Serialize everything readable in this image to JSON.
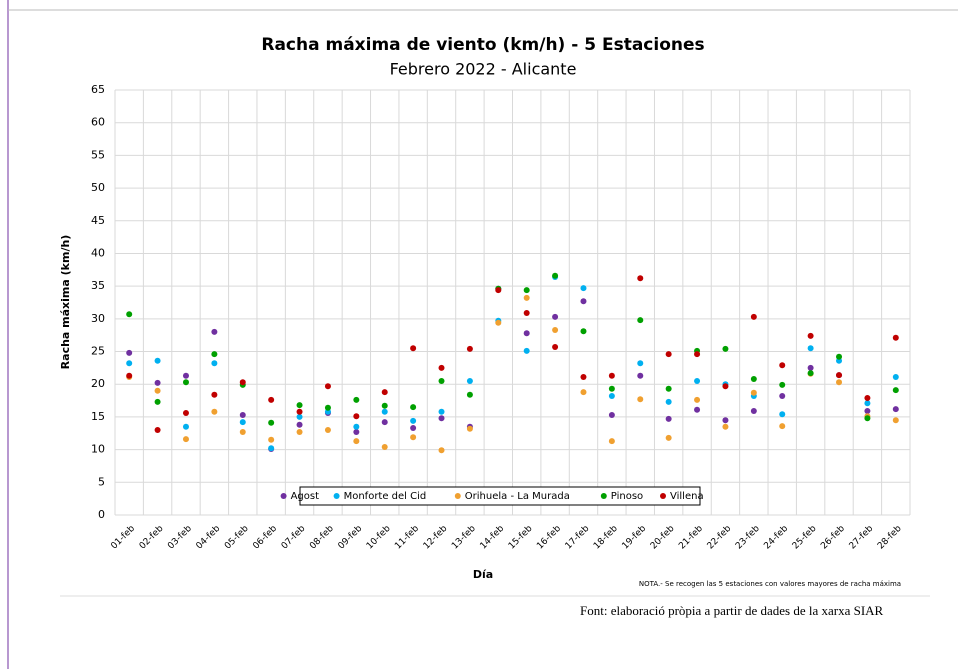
{
  "chart_data": {
    "type": "scatter",
    "title": "Racha máxima de viento (km/h) - 5 Estaciones",
    "subtitle": "Febrero 2022 - Alicante",
    "x_label": "Día",
    "y_label": "Racha máxima (km/h)",
    "note": "NOTA.- Se recogen las 5 estaciones con valores mayores de racha máxima",
    "source": "Font: elaboració pròpia a partir de dades de la xarxa SIAR",
    "categories": [
      "01-feb",
      "02-feb",
      "03-feb",
      "04-feb",
      "05-feb",
      "06-feb",
      "07-feb",
      "08-feb",
      "09-feb",
      "10-feb",
      "11-feb",
      "12-feb",
      "13-feb",
      "14-feb",
      "15-feb",
      "16-feb",
      "17-feb",
      "18-feb",
      "19-feb",
      "20-feb",
      "21-feb",
      "22-feb",
      "23-feb",
      "24-feb",
      "25-feb",
      "26-feb",
      "27-feb",
      "28-feb"
    ],
    "series": [
      {
        "name": "Agost",
        "color": "#7030a0",
        "values": [
          24.8,
          20.2,
          21.3,
          28.0,
          15.3,
          10.1,
          13.8,
          15.6,
          12.7,
          14.2,
          13.3,
          14.8,
          13.5,
          34.6,
          27.8,
          30.3,
          32.7,
          15.3,
          21.3,
          14.7,
          16.1,
          14.5,
          15.9,
          18.2,
          22.5,
          21.4,
          15.9,
          16.2
        ]
      },
      {
        "name": "Monforte del Cid",
        "color": "#00b0f0",
        "values": [
          23.2,
          23.6,
          13.5,
          23.2,
          14.2,
          10.2,
          15.0,
          15.8,
          13.5,
          15.8,
          14.4,
          15.8,
          20.5,
          29.7,
          25.1,
          36.4,
          34.7,
          18.2,
          23.2,
          17.3,
          20.5,
          20.0,
          18.2,
          15.4,
          25.5,
          23.6,
          17.1,
          21.1
        ]
      },
      {
        "name": "Orihuela - La Murada",
        "color": "#f0a030",
        "values": [
          21.1,
          19.0,
          11.6,
          15.8,
          12.7,
          11.5,
          12.7,
          13.0,
          11.3,
          10.4,
          11.9,
          9.9,
          13.2,
          29.4,
          33.2,
          28.3,
          18.8,
          11.3,
          17.7,
          11.8,
          17.6,
          13.5,
          18.7,
          13.6,
          21.6,
          20.3,
          15.1,
          14.5
        ]
      },
      {
        "name": "Pinoso",
        "color": "#00a000",
        "values": [
          30.7,
          17.3,
          20.3,
          24.6,
          19.9,
          14.1,
          16.8,
          16.4,
          17.6,
          16.7,
          16.5,
          20.5,
          18.4,
          34.6,
          34.4,
          36.6,
          28.1,
          19.3,
          29.8,
          19.3,
          25.1,
          25.4,
          20.8,
          19.9,
          21.7,
          24.2,
          14.8,
          19.1
        ]
      },
      {
        "name": "Villena",
        "color": "#c00000",
        "values": [
          21.3,
          13.0,
          15.6,
          18.4,
          20.3,
          17.6,
          15.8,
          19.7,
          15.1,
          18.8,
          25.5,
          22.5,
          25.4,
          34.4,
          30.9,
          25.7,
          21.1,
          21.3,
          36.2,
          24.6,
          24.6,
          19.7,
          30.3,
          22.9,
          27.4,
          21.4,
          17.9,
          27.1
        ]
      }
    ],
    "ylim": [
      0,
      65
    ],
    "yticks": [
      0,
      5,
      10,
      15,
      20,
      25,
      30,
      35,
      40,
      45,
      50,
      55,
      60,
      65
    ],
    "grid": true,
    "legend": "bottom"
  }
}
